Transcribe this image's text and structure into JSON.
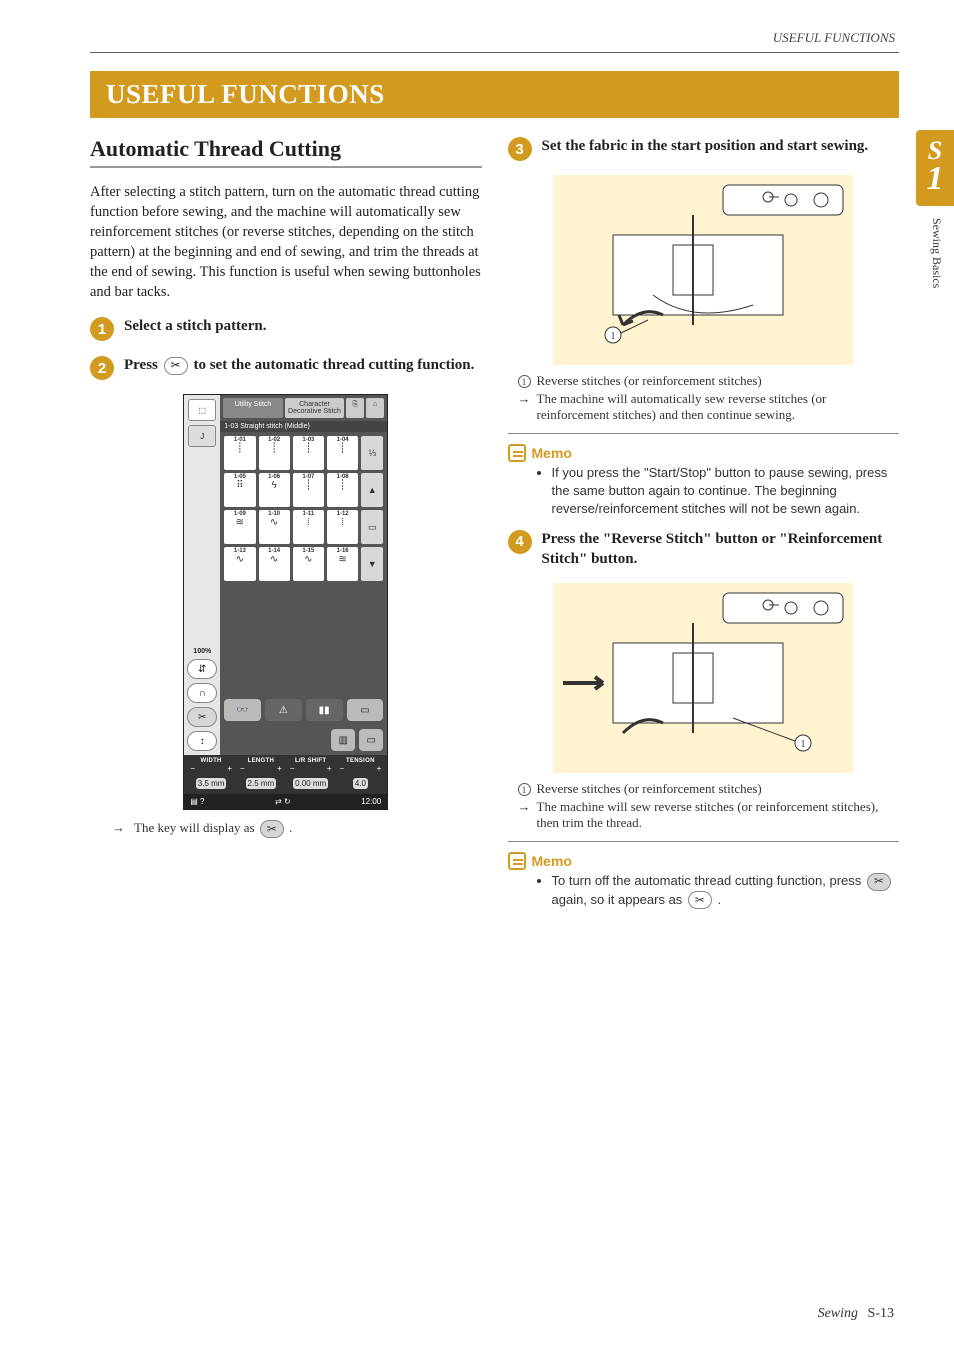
{
  "colors": {
    "accent": "#d29b1f",
    "text": "#222222",
    "rule": "#888888",
    "screenshot_bg": "#4a4a4a"
  },
  "header": {
    "section_label": "USEFUL FUNCTIONS"
  },
  "side_tab": {
    "letter": "S",
    "number": "1",
    "label": "Sewing Basics"
  },
  "title_bar": "USEFUL FUNCTIONS",
  "left": {
    "subheading": "Automatic Thread Cutting",
    "intro": "After selecting a stitch pattern, turn on the automatic thread cutting function before sewing, and the machine will automatically sew reinforcement stitches (or reverse stitches, depending on the stitch pattern) at the beginning and end of sewing, and trim the threads at the end of sewing. This function is useful when sewing buttonholes and bar tacks.",
    "step1": {
      "n": "1",
      "text": "Select a stitch pattern."
    },
    "step2": {
      "n": "2",
      "text_a": "Press ",
      "btn": "✂",
      "text_b": " to set the automatic thread cutting function."
    },
    "screenshot": {
      "left_btn1": "⬚",
      "left_btn2": "J",
      "pct": "100%",
      "oval1": "⇵",
      "oval2": "∩",
      "oval3": "✂",
      "oval4": "↕",
      "tab1": "Utility Stitch",
      "tab2": "Character Decorative Stitch",
      "tab3": "⎘",
      "tab4": "⌂",
      "subbar": "1-03   Straight stitch (Middle)",
      "cells": [
        {
          "l": "1-01",
          "s": "┊"
        },
        {
          "l": "1-02",
          "s": "┊"
        },
        {
          "l": "1-03",
          "s": "┊"
        },
        {
          "l": "1-04",
          "s": "┊"
        },
        {
          "side": "⅓"
        },
        {
          "l": "1-05",
          "s": "⠿"
        },
        {
          "l": "1-06",
          "s": "ϟ"
        },
        {
          "l": "1-07",
          "s": "┊"
        },
        {
          "l": "1-08",
          "s": "┊"
        },
        {
          "side": "▲"
        },
        {
          "l": "1-09",
          "s": "≋"
        },
        {
          "l": "1-10",
          "s": "∿"
        },
        {
          "l": "1-11",
          "s": "⦙"
        },
        {
          "l": "1-12",
          "s": "⦙"
        },
        {
          "side": "▭"
        },
        {
          "l": "1-13",
          "s": "∿"
        },
        {
          "l": "1-14",
          "s": "∿"
        },
        {
          "l": "1-15",
          "s": "∿"
        },
        {
          "l": "1-16",
          "s": "≋"
        },
        {
          "side": "▼"
        }
      ],
      "toolbar": [
        "👓",
        "⚠",
        "▮▮",
        "▭"
      ],
      "toolbar_right": [
        "▥",
        "▭"
      ],
      "width_lbl": "WIDTH",
      "length_lbl": "LENGTH",
      "shift_lbl": "L/R SHIFT",
      "tension_lbl": "TENSION",
      "width_val": "3.5 mm",
      "length_val": "2.5 mm",
      "shift_val": "0.00 mm",
      "tension_val": "4.0",
      "status_left": "▤  ?",
      "status_mid": "⇄ ↻",
      "clock": "12:00"
    },
    "result_note_a": "The key will display as ",
    "result_btn": "✂",
    "result_note_b": "."
  },
  "right": {
    "step3": {
      "n": "3",
      "text": "Set the fabric in the start position and start sewing."
    },
    "dia1_callout": "Reverse stitches (or reinforcement stitches)",
    "dia1_arrow": "The machine will automatically sew reverse stitches (or reinforcement stitches) and then continue sewing.",
    "memo1": "If you press the \"Start/Stop\" button to pause sewing, press the same button again to continue. The beginning reverse/reinforcement stitches will not be sewn again.",
    "step4": {
      "n": "4",
      "text": "Press the \"Reverse Stitch\" button or \"Reinforcement Stitch\" button."
    },
    "dia2_callout": "Reverse stitches (or reinforcement stitches)",
    "dia2_arrow": "The machine will sew reverse stitches (or reinforcement stitches), then trim the thread.",
    "memo2_a": "To turn off the automatic thread cutting function, press ",
    "memo2_btn1": "✂",
    "memo2_b": " again, so it appears as ",
    "memo2_btn2": "✂",
    "memo2_c": "."
  },
  "memo_label": "Memo",
  "footer": {
    "section": "Sewing",
    "page": "S-13"
  }
}
